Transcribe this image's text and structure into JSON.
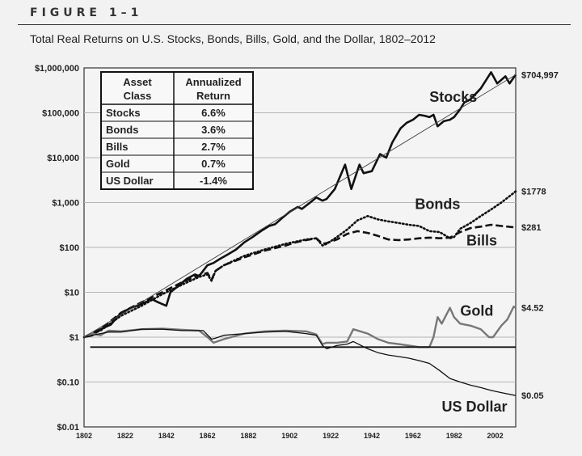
{
  "figure": {
    "label": "FIGURE 1–1",
    "title": "Total Real Returns on U.S. Stocks, Bonds, Bills, Gold, and the Dollar, 1802–2012"
  },
  "colors": {
    "grid": "#b5b5b5",
    "line": "#111111",
    "gold_line": "#777777",
    "trend": "#444444"
  },
  "chart_data": {
    "type": "line",
    "title": "Total Real Returns on U.S. Stocks, Bonds, Bills, Gold, and the Dollar, 1802–2012",
    "y_scale": "log",
    "ylim": [
      0.01,
      1000000
    ],
    "xlim": [
      1802,
      2012
    ],
    "y_ticks": [
      0.01,
      0.1,
      1,
      10,
      100,
      1000,
      10000,
      100000,
      1000000
    ],
    "y_tick_labels": [
      "$0.01",
      "$0.10",
      "$1",
      "$10",
      "$100",
      "$1,000",
      "$10,000",
      "$100,000",
      "$1,000,000"
    ],
    "x_ticks": [
      1802,
      1822,
      1842,
      1862,
      1882,
      1902,
      1922,
      1942,
      1962,
      1982,
      2002
    ],
    "grid": true,
    "series": [
      {
        "name": "Stocks",
        "style": "solid-thick",
        "end_label": "$704,997",
        "points": [
          [
            1802,
            1
          ],
          [
            1806,
            1.1
          ],
          [
            1810,
            1.5
          ],
          [
            1815,
            1.9
          ],
          [
            1820,
            3.5
          ],
          [
            1825,
            4.5
          ],
          [
            1830,
            5.5
          ],
          [
            1835,
            7
          ],
          [
            1838,
            6
          ],
          [
            1842,
            5
          ],
          [
            1844,
            10
          ],
          [
            1848,
            14
          ],
          [
            1852,
            20
          ],
          [
            1856,
            25
          ],
          [
            1858,
            23
          ],
          [
            1862,
            40
          ],
          [
            1865,
            45
          ],
          [
            1868,
            55
          ],
          [
            1872,
            70
          ],
          [
            1876,
            90
          ],
          [
            1880,
            130
          ],
          [
            1884,
            170
          ],
          [
            1888,
            230
          ],
          [
            1892,
            300
          ],
          [
            1895,
            330
          ],
          [
            1899,
            480
          ],
          [
            1902,
            620
          ],
          [
            1906,
            800
          ],
          [
            1908,
            720
          ],
          [
            1912,
            1000
          ],
          [
            1915,
            1300
          ],
          [
            1918,
            1100
          ],
          [
            1920,
            1200
          ],
          [
            1924,
            2000
          ],
          [
            1929,
            7000
          ],
          [
            1932,
            2000
          ],
          [
            1936,
            7000
          ],
          [
            1938,
            4500
          ],
          [
            1942,
            5000
          ],
          [
            1946,
            12000
          ],
          [
            1949,
            10000
          ],
          [
            1952,
            22000
          ],
          [
            1956,
            45000
          ],
          [
            1959,
            60000
          ],
          [
            1962,
            70000
          ],
          [
            1965,
            90000
          ],
          [
            1968,
            85000
          ],
          [
            1970,
            80000
          ],
          [
            1972,
            90000
          ],
          [
            1974,
            50000
          ],
          [
            1977,
            65000
          ],
          [
            1980,
            70000
          ],
          [
            1982,
            80000
          ],
          [
            1985,
            120000
          ],
          [
            1987,
            170000
          ],
          [
            1990,
            200000
          ],
          [
            1995,
            350000
          ],
          [
            2000,
            800000
          ],
          [
            2003,
            450000
          ],
          [
            2007,
            650000
          ],
          [
            2009,
            450000
          ],
          [
            2012,
            704997
          ]
        ]
      },
      {
        "name": "Bonds",
        "style": "dotted",
        "end_label": "$1778",
        "points": [
          [
            1802,
            1
          ],
          [
            1810,
            1.4
          ],
          [
            1820,
            3
          ],
          [
            1830,
            5
          ],
          [
            1840,
            9
          ],
          [
            1850,
            15
          ],
          [
            1858,
            22
          ],
          [
            1862,
            25
          ],
          [
            1864,
            18
          ],
          [
            1866,
            30
          ],
          [
            1870,
            40
          ],
          [
            1880,
            65
          ],
          [
            1890,
            90
          ],
          [
            1900,
            120
          ],
          [
            1910,
            150
          ],
          [
            1915,
            160
          ],
          [
            1918,
            110
          ],
          [
            1920,
            120
          ],
          [
            1925,
            170
          ],
          [
            1930,
            250
          ],
          [
            1935,
            400
          ],
          [
            1940,
            500
          ],
          [
            1945,
            420
          ],
          [
            1950,
            380
          ],
          [
            1955,
            350
          ],
          [
            1960,
            320
          ],
          [
            1965,
            300
          ],
          [
            1970,
            230
          ],
          [
            1975,
            220
          ],
          [
            1980,
            160
          ],
          [
            1982,
            170
          ],
          [
            1985,
            260
          ],
          [
            1990,
            350
          ],
          [
            1995,
            500
          ],
          [
            2000,
            700
          ],
          [
            2005,
            1000
          ],
          [
            2010,
            1500
          ],
          [
            2012,
            1778
          ]
        ]
      },
      {
        "name": "Bills",
        "style": "dashed",
        "end_label": "$281",
        "points": [
          [
            1802,
            1
          ],
          [
            1810,
            1.5
          ],
          [
            1820,
            3.5
          ],
          [
            1830,
            6
          ],
          [
            1840,
            10
          ],
          [
            1850,
            17
          ],
          [
            1858,
            24
          ],
          [
            1862,
            27
          ],
          [
            1864,
            19
          ],
          [
            1866,
            30
          ],
          [
            1870,
            40
          ],
          [
            1880,
            60
          ],
          [
            1890,
            85
          ],
          [
            1900,
            110
          ],
          [
            1905,
            130
          ],
          [
            1910,
            145
          ],
          [
            1915,
            160
          ],
          [
            1918,
            120
          ],
          [
            1920,
            125
          ],
          [
            1925,
            150
          ],
          [
            1930,
            200
          ],
          [
            1935,
            230
          ],
          [
            1940,
            210
          ],
          [
            1945,
            180
          ],
          [
            1950,
            150
          ],
          [
            1955,
            145
          ],
          [
            1960,
            150
          ],
          [
            1965,
            160
          ],
          [
            1970,
            165
          ],
          [
            1975,
            160
          ],
          [
            1980,
            165
          ],
          [
            1985,
            220
          ],
          [
            1990,
            270
          ],
          [
            1995,
            290
          ],
          [
            2000,
            320
          ],
          [
            2005,
            300
          ],
          [
            2010,
            285
          ],
          [
            2012,
            281
          ]
        ]
      },
      {
        "name": "Gold",
        "style": "solid-gray",
        "end_label": "$4.52",
        "points": [
          [
            1802,
            1
          ],
          [
            1806,
            1.2
          ],
          [
            1810,
            1.1
          ],
          [
            1814,
            1.4
          ],
          [
            1820,
            1.35
          ],
          [
            1830,
            1.5
          ],
          [
            1840,
            1.55
          ],
          [
            1850,
            1.45
          ],
          [
            1858,
            1.4
          ],
          [
            1862,
            1.0
          ],
          [
            1865,
            0.75
          ],
          [
            1870,
            0.9
          ],
          [
            1880,
            1.2
          ],
          [
            1890,
            1.35
          ],
          [
            1900,
            1.4
          ],
          [
            1910,
            1.35
          ],
          [
            1915,
            1.15
          ],
          [
            1918,
            0.7
          ],
          [
            1920,
            0.75
          ],
          [
            1925,
            0.75
          ],
          [
            1930,
            0.8
          ],
          [
            1933,
            1.5
          ],
          [
            1940,
            1.2
          ],
          [
            1945,
            0.9
          ],
          [
            1950,
            0.75
          ],
          [
            1955,
            0.7
          ],
          [
            1960,
            0.65
          ],
          [
            1965,
            0.6
          ],
          [
            1970,
            0.6
          ],
          [
            1972,
            1.0
          ],
          [
            1974,
            2.8
          ],
          [
            1976,
            2.0
          ],
          [
            1980,
            4.5
          ],
          [
            1982,
            2.8
          ],
          [
            1985,
            2.0
          ],
          [
            1990,
            1.8
          ],
          [
            1995,
            1.5
          ],
          [
            1999,
            1.0
          ],
          [
            2001,
            1.0
          ],
          [
            2005,
            1.8
          ],
          [
            2008,
            2.5
          ],
          [
            2011,
            4.8
          ],
          [
            2012,
            4.52
          ]
        ]
      },
      {
        "name": "US Dollar",
        "style": "solid-thin",
        "end_label": "$0.05",
        "points": [
          [
            1802,
            1
          ],
          [
            1810,
            1.2
          ],
          [
            1814,
            1.3
          ],
          [
            1820,
            1.3
          ],
          [
            1830,
            1.5
          ],
          [
            1840,
            1.5
          ],
          [
            1850,
            1.4
          ],
          [
            1860,
            1.4
          ],
          [
            1864,
            0.9
          ],
          [
            1866,
            0.95
          ],
          [
            1870,
            1.1
          ],
          [
            1880,
            1.2
          ],
          [
            1890,
            1.3
          ],
          [
            1900,
            1.35
          ],
          [
            1910,
            1.2
          ],
          [
            1915,
            1.1
          ],
          [
            1918,
            0.65
          ],
          [
            1920,
            0.55
          ],
          [
            1925,
            0.65
          ],
          [
            1930,
            0.7
          ],
          [
            1933,
            0.8
          ],
          [
            1940,
            0.55
          ],
          [
            1945,
            0.45
          ],
          [
            1950,
            0.4
          ],
          [
            1955,
            0.37
          ],
          [
            1960,
            0.34
          ],
          [
            1965,
            0.3
          ],
          [
            1970,
            0.26
          ],
          [
            1975,
            0.18
          ],
          [
            1980,
            0.12
          ],
          [
            1985,
            0.1
          ],
          [
            1990,
            0.085
          ],
          [
            1995,
            0.075
          ],
          [
            2000,
            0.065
          ],
          [
            2005,
            0.058
          ],
          [
            2012,
            0.05
          ]
        ]
      },
      {
        "name": "Stocks trend",
        "style": "trend-thin",
        "points": [
          [
            1802,
            1
          ],
          [
            2012,
            704997
          ]
        ]
      },
      {
        "name": "Baseline",
        "style": "horizontal",
        "points": [
          [
            1805,
            0.6
          ],
          [
            2012,
            0.6
          ]
        ]
      }
    ],
    "series_labels": [
      {
        "text": "Stocks",
        "x": 1970,
        "y": 175000
      },
      {
        "text": "Bonds",
        "x": 1963,
        "y": 720
      },
      {
        "text": "Bills",
        "x": 1988,
        "y": 110
      },
      {
        "text": "Gold",
        "x": 1985,
        "y": 3.0
      },
      {
        "text": "US Dollar",
        "x": 1976,
        "y": 0.022
      }
    ],
    "table": {
      "headers": [
        [
          "Asset",
          "Class"
        ],
        [
          "Annualized",
          "Return"
        ]
      ],
      "rows": [
        [
          "Stocks",
          "6.6%"
        ],
        [
          "Bonds",
          "3.6%"
        ],
        [
          "Bills",
          "2.7%"
        ],
        [
          "Gold",
          "0.7%"
        ],
        [
          "US Dollar",
          "-1.4%"
        ]
      ]
    }
  }
}
